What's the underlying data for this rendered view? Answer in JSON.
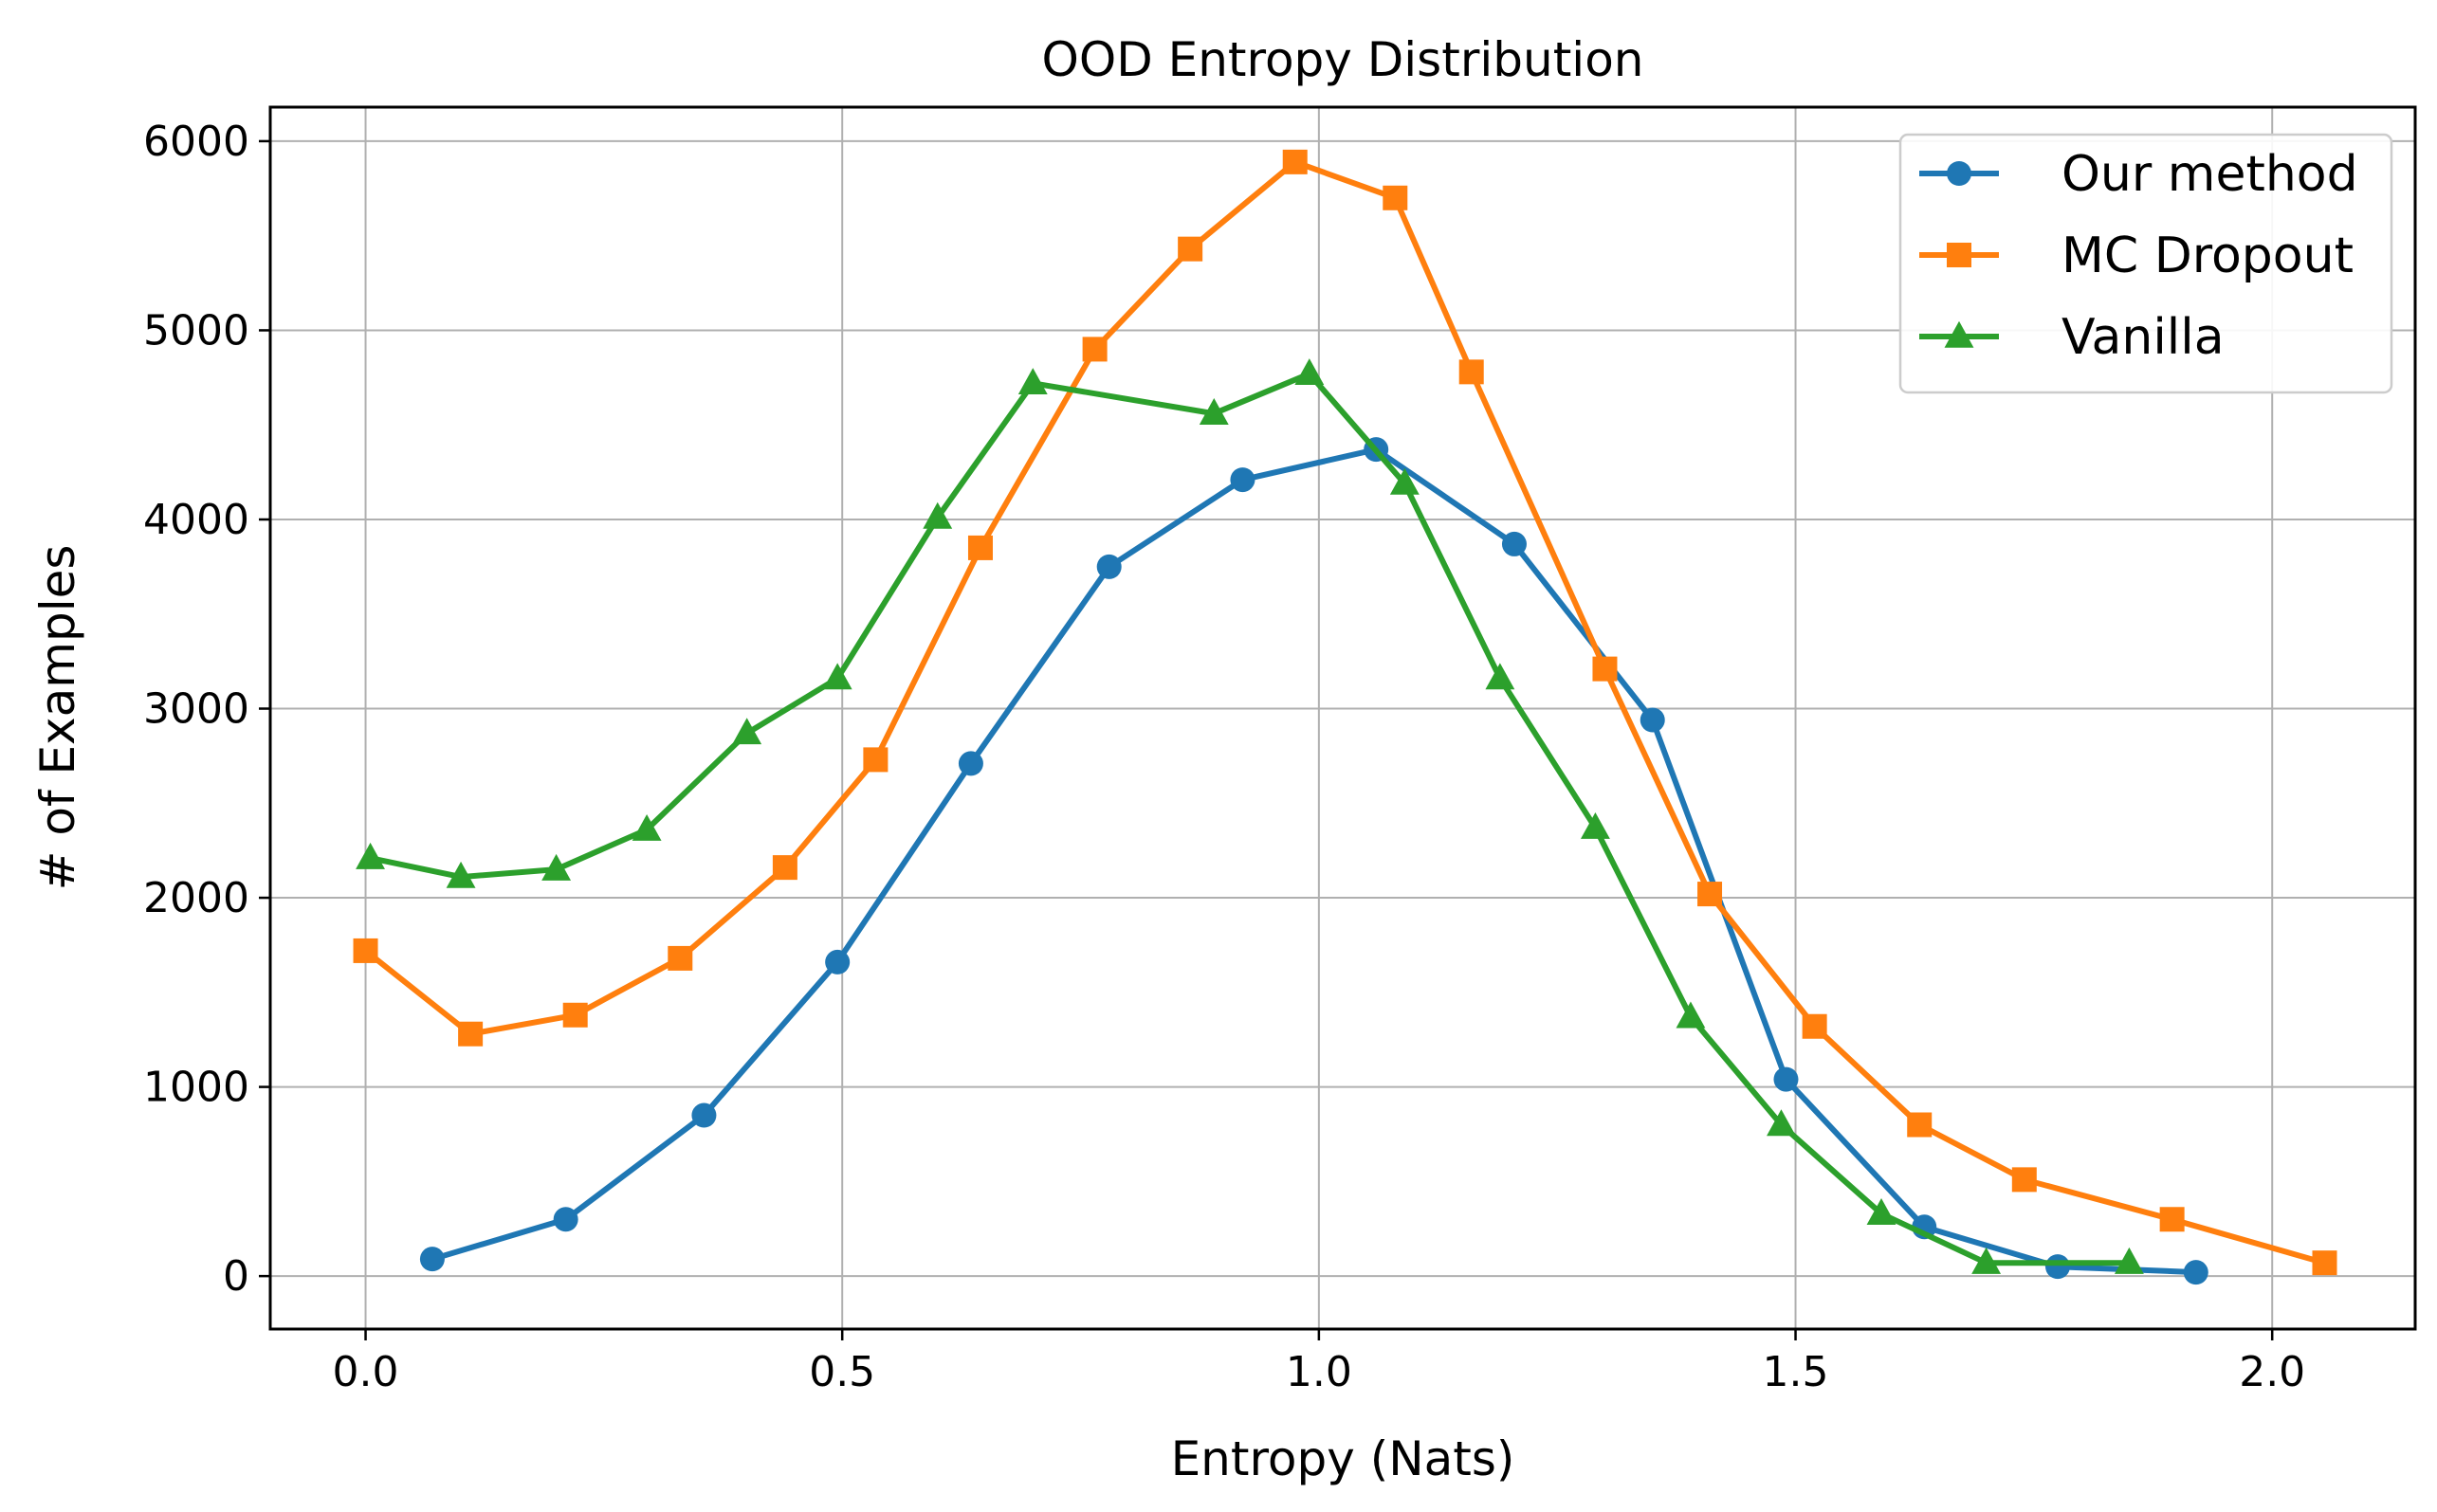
{
  "chart_data": {
    "type": "line",
    "title": "OOD Entropy Distribution",
    "xlabel": "Entropy (Nats)",
    "ylabel": "# of Examples",
    "xlim": [
      -0.1,
      2.15
    ],
    "ylim": [
      -280,
      6180
    ],
    "xticks": [
      0.0,
      0.5,
      1.0,
      1.5,
      2.0
    ],
    "xtick_labels": [
      "0.0",
      "0.5",
      "1.0",
      "1.5",
      "2.0"
    ],
    "yticks": [
      0,
      1000,
      2000,
      3000,
      4000,
      5000,
      6000
    ],
    "ytick_labels": [
      "0",
      "1000",
      "2000",
      "3000",
      "4000",
      "5000",
      "6000"
    ],
    "grid": true,
    "legend_position": "top-right",
    "series": [
      {
        "name": "Our method",
        "color": "#1f77b4",
        "marker": "circle",
        "x": [
          0.07,
          0.21,
          0.355,
          0.495,
          0.635,
          0.78,
          0.92,
          1.06,
          1.205,
          1.35,
          1.49,
          1.635,
          1.775,
          1.92
        ],
        "y": [
          90,
          300,
          850,
          1660,
          2710,
          3750,
          4210,
          4370,
          3870,
          2940,
          1040,
          260,
          50,
          20
        ]
      },
      {
        "name": "MC Dropout",
        "color": "#ff7f0e",
        "marker": "square",
        "x": [
          0.0,
          0.11,
          0.22,
          0.33,
          0.44,
          0.535,
          0.645,
          0.765,
          0.865,
          0.975,
          1.08,
          1.16,
          1.3,
          1.41,
          1.52,
          1.63,
          1.74,
          1.895,
          2.055
        ],
        "y": [
          1720,
          1280,
          1380,
          1680,
          2160,
          2730,
          3850,
          4900,
          5430,
          5890,
          5700,
          4780,
          3210,
          2020,
          1320,
          800,
          510,
          300,
          70
        ]
      },
      {
        "name": "Vanilla",
        "color": "#2ca02c",
        "marker": "triangle",
        "x": [
          0.005,
          0.1,
          0.2,
          0.295,
          0.4,
          0.495,
          0.6,
          0.7,
          0.89,
          0.99,
          1.09,
          1.19,
          1.29,
          1.39,
          1.485,
          1.59,
          1.7,
          1.85
        ],
        "y": [
          2210,
          2110,
          2150,
          2360,
          2870,
          3160,
          4010,
          4720,
          4560,
          4770,
          4190,
          3160,
          2370,
          1370,
          800,
          330,
          70,
          70
        ]
      }
    ]
  }
}
